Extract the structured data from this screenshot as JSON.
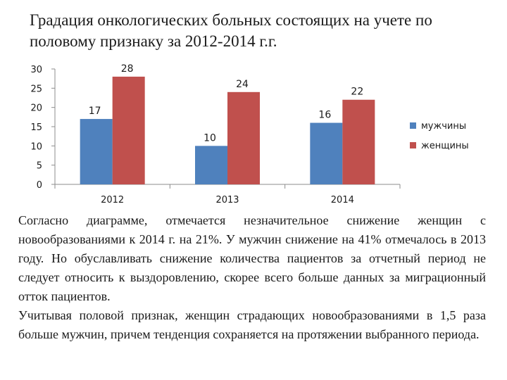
{
  "title": "Градация онкологических больных состоящих на учете по половому признаку за 2012-2014 г.г.",
  "chart_data": {
    "type": "bar",
    "categories": [
      "2012",
      "2013",
      "2014"
    ],
    "series": [
      {
        "name": "мужчины",
        "values": [
          17,
          10,
          16
        ],
        "color": "#4f81bd"
      },
      {
        "name": "женщины",
        "values": [
          28,
          24,
          22
        ],
        "color": "#c0504d"
      }
    ],
    "ylim": [
      0,
      30
    ],
    "yticks": [
      0,
      5,
      10,
      15,
      20,
      25,
      30
    ],
    "grid": false,
    "legend": "right"
  },
  "paragraphs": [
    "Согласно диаграмме, отмечается незначительное снижение женщин с новообразованиями к 2014 г. на 21%. У мужчин снижение на 41% отмечалось в 2013 году. Но обуславливать снижение количества пациентов за отчетный период не следует относить к выздоровлению, скорее всего больше данных за миграционный отток пациентов.",
    "Учитывая половой признак, женщин страдающих новообразованиями в 1,5 раза больше мужчин, причем тенденция сохраняется на протяжении выбранного периода."
  ]
}
